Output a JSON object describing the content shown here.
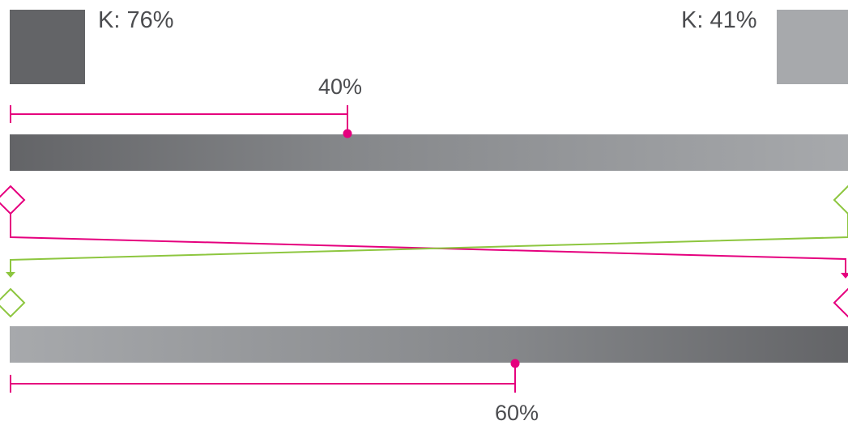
{
  "colors": {
    "magenta": "#e5007e",
    "green": "#8dc63f",
    "dark_gray": "#636467",
    "light_gray": "#a7a9ac",
    "text": "#4b4c4f"
  },
  "swatches": {
    "left": {
      "label": "K: 76%",
      "color": "#636467"
    },
    "right": {
      "label": "K: 41%",
      "color": "#a7a9ac"
    }
  },
  "top_gradient": {
    "from": "#636467",
    "to": "#a7a9ac",
    "midpoint": 0.4,
    "midpoint_label": "40%"
  },
  "bottom_gradient": {
    "from": "#a7a9ac",
    "to": "#636467",
    "midpoint": 0.6,
    "midpoint_label": "60%"
  }
}
